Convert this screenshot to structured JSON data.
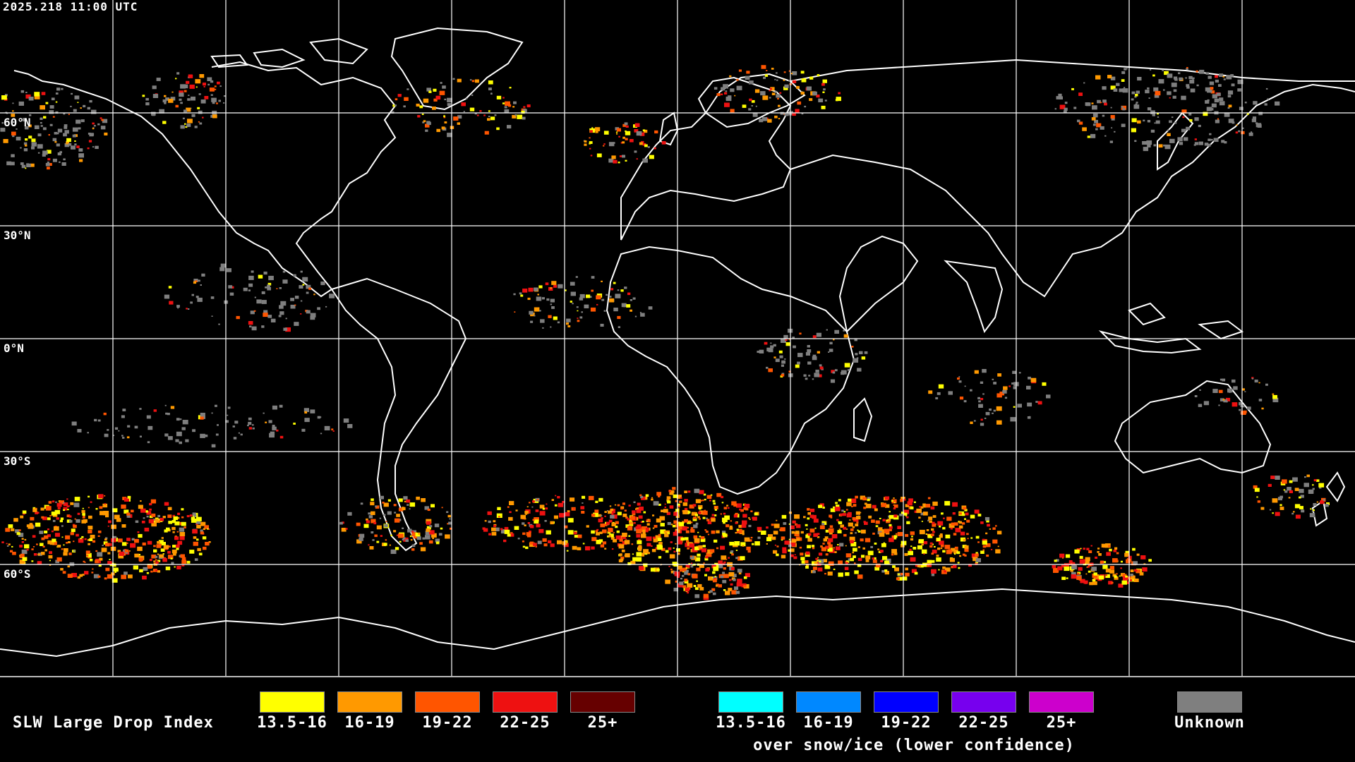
{
  "map": {
    "timestamp": "2025.218 11:00 UTC",
    "latitude_labels": [
      "60°N",
      "30°N",
      "0°N",
      "30°S",
      "60°S"
    ],
    "gridline_color": "#ffffff",
    "coastline_color": "#ffffff",
    "unknown_color": "#7f7f7f"
  },
  "legend": {
    "title": "SLW Large Drop Index",
    "normal_classes": [
      {
        "label": "13.5-16",
        "color": "#ffff00"
      },
      {
        "label": "16-19",
        "color": "#ff9900"
      },
      {
        "label": "19-22",
        "color": "#ff5500"
      },
      {
        "label": "22-25",
        "color": "#ee1111"
      },
      {
        "label": "25+",
        "color": "#660000"
      }
    ],
    "snow_ice_classes": [
      {
        "label": "13.5-16",
        "color": "#00ffff"
      },
      {
        "label": "16-19",
        "color": "#0088ff"
      },
      {
        "label": "19-22",
        "color": "#0000ff"
      },
      {
        "label": "22-25",
        "color": "#7700ee"
      },
      {
        "label": "25+",
        "color": "#cc00cc"
      }
    ],
    "snow_ice_caption": "over snow/ice (lower confidence)",
    "unknown": {
      "label": "Unknown",
      "color": "#7f7f7f"
    }
  }
}
